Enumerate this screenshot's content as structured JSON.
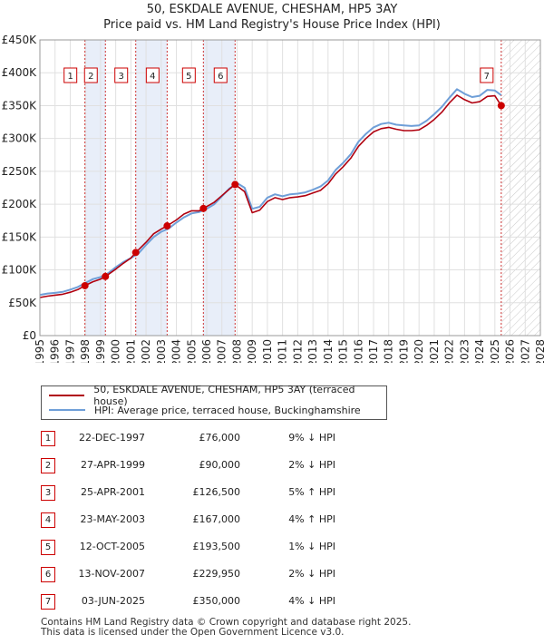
{
  "title_line1": "50, ESKDALE AVENUE, CHESHAM, HP5 3AY",
  "title_line2": "Price paid vs. HM Land Registry's House Price Index (HPI)",
  "chart_data": {
    "type": "line",
    "title": "50, ESKDALE AVENUE, CHESHAM, HP5 3AY — Price paid vs. HM Land Registry's House Price Index (HPI)",
    "xlim": [
      1995,
      2028
    ],
    "ylim": [
      0,
      450000
    ],
    "x_ticks": [
      "1995",
      "1996",
      "1997",
      "1998",
      "1999",
      "2000",
      "2001",
      "2002",
      "2003",
      "2004",
      "2005",
      "2006",
      "2007",
      "2008",
      "2009",
      "2010",
      "2011",
      "2012",
      "2013",
      "2014",
      "2015",
      "2016",
      "2017",
      "2018",
      "2019",
      "2020",
      "2021",
      "2022",
      "2023",
      "2024",
      "2025",
      "2026",
      "2027",
      "2028"
    ],
    "y_ticks": [
      {
        "value": 0,
        "label": "£0"
      },
      {
        "value": 50000,
        "label": "£50K"
      },
      {
        "value": 100000,
        "label": "£100K"
      },
      {
        "value": 150000,
        "label": "£150K"
      },
      {
        "value": 200000,
        "label": "£200K"
      },
      {
        "value": 250000,
        "label": "£250K"
      },
      {
        "value": 300000,
        "label": "£300K"
      },
      {
        "value": 350000,
        "label": "£350K"
      },
      {
        "value": 400000,
        "label": "£400K"
      },
      {
        "value": 450000,
        "label": "£450K"
      }
    ],
    "forecast_start": 2025.42,
    "series": [
      {
        "name": "HPI: Average price, terraced house, Buckinghamshire",
        "color": "#6f9fd8",
        "points": [
          [
            1995.0,
            62000
          ],
          [
            1995.5,
            64000
          ],
          [
            1996.0,
            65000
          ],
          [
            1996.5,
            66500
          ],
          [
            1997.0,
            70000
          ],
          [
            1997.5,
            74000
          ],
          [
            1998.0,
            80000
          ],
          [
            1998.5,
            86000
          ],
          [
            1999.0,
            89000
          ],
          [
            1999.5,
            95000
          ],
          [
            2000.0,
            104000
          ],
          [
            2000.5,
            112000
          ],
          [
            2001.0,
            118000
          ],
          [
            2001.5,
            125000
          ],
          [
            2002.0,
            138000
          ],
          [
            2002.5,
            150000
          ],
          [
            2003.0,
            158000
          ],
          [
            2003.5,
            163000
          ],
          [
            2004.0,
            172000
          ],
          [
            2004.5,
            180000
          ],
          [
            2005.0,
            186000
          ],
          [
            2005.5,
            188000
          ],
          [
            2006.0,
            193000
          ],
          [
            2006.5,
            200000
          ],
          [
            2007.0,
            212000
          ],
          [
            2007.5,
            224000
          ],
          [
            2008.0,
            232000
          ],
          [
            2008.5,
            225000
          ],
          [
            2009.0,
            193000
          ],
          [
            2009.5,
            196000
          ],
          [
            2010.0,
            210000
          ],
          [
            2010.5,
            215000
          ],
          [
            2011.0,
            212000
          ],
          [
            2011.5,
            215000
          ],
          [
            2012.0,
            216000
          ],
          [
            2012.5,
            218000
          ],
          [
            2013.0,
            222000
          ],
          [
            2013.5,
            227000
          ],
          [
            2014.0,
            236000
          ],
          [
            2014.5,
            252000
          ],
          [
            2015.0,
            263000
          ],
          [
            2015.5,
            276000
          ],
          [
            2016.0,
            295000
          ],
          [
            2016.5,
            307000
          ],
          [
            2017.0,
            317000
          ],
          [
            2017.5,
            322000
          ],
          [
            2018.0,
            324000
          ],
          [
            2018.5,
            321000
          ],
          [
            2019.0,
            320000
          ],
          [
            2019.5,
            319000
          ],
          [
            2020.0,
            320000
          ],
          [
            2020.5,
            327000
          ],
          [
            2021.0,
            337000
          ],
          [
            2021.5,
            348000
          ],
          [
            2022.0,
            362000
          ],
          [
            2022.5,
            375000
          ],
          [
            2023.0,
            368000
          ],
          [
            2023.5,
            363000
          ],
          [
            2024.0,
            365000
          ],
          [
            2024.5,
            374000
          ],
          [
            2025.0,
            373000
          ],
          [
            2025.42,
            366000
          ]
        ]
      },
      {
        "name": "50, ESKDALE AVENUE, CHESHAM, HP5 3AY (terraced house)",
        "color": "#b0000f",
        "points": [
          [
            1995.0,
            58000
          ],
          [
            1995.5,
            60000
          ],
          [
            1996.0,
            61500
          ],
          [
            1996.5,
            63000
          ],
          [
            1997.0,
            66000
          ],
          [
            1997.5,
            70000
          ],
          [
            1997.97,
            76000
          ],
          [
            1998.5,
            82000
          ],
          [
            1999.0,
            86000
          ],
          [
            1999.32,
            90000
          ],
          [
            2000.0,
            101000
          ],
          [
            2000.5,
            110000
          ],
          [
            2001.0,
            118000
          ],
          [
            2001.32,
            126500
          ],
          [
            2002.0,
            142000
          ],
          [
            2002.5,
            155000
          ],
          [
            2003.0,
            162000
          ],
          [
            2003.39,
            167000
          ],
          [
            2004.0,
            176000
          ],
          [
            2004.5,
            185000
          ],
          [
            2005.0,
            190000
          ],
          [
            2005.5,
            190000
          ],
          [
            2005.78,
            193500
          ],
          [
            2006.5,
            203000
          ],
          [
            2007.0,
            213000
          ],
          [
            2007.5,
            223000
          ],
          [
            2007.87,
            229950
          ],
          [
            2008.5,
            219000
          ],
          [
            2009.0,
            187000
          ],
          [
            2009.5,
            191000
          ],
          [
            2010.0,
            204000
          ],
          [
            2010.5,
            210000
          ],
          [
            2011.0,
            207000
          ],
          [
            2011.5,
            210000
          ],
          [
            2012.0,
            211000
          ],
          [
            2012.5,
            213000
          ],
          [
            2013.0,
            217000
          ],
          [
            2013.5,
            221000
          ],
          [
            2014.0,
            231000
          ],
          [
            2014.5,
            246000
          ],
          [
            2015.0,
            257000
          ],
          [
            2015.5,
            270000
          ],
          [
            2016.0,
            288000
          ],
          [
            2016.5,
            300000
          ],
          [
            2017.0,
            310000
          ],
          [
            2017.5,
            315000
          ],
          [
            2018.0,
            317000
          ],
          [
            2018.5,
            314000
          ],
          [
            2019.0,
            312000
          ],
          [
            2019.5,
            312000
          ],
          [
            2020.0,
            313000
          ],
          [
            2020.5,
            320000
          ],
          [
            2021.0,
            329000
          ],
          [
            2021.5,
            340000
          ],
          [
            2022.0,
            354000
          ],
          [
            2022.5,
            366000
          ],
          [
            2023.0,
            359000
          ],
          [
            2023.5,
            354000
          ],
          [
            2024.0,
            356000
          ],
          [
            2024.5,
            364000
          ],
          [
            2025.0,
            365000
          ],
          [
            2025.42,
            350000
          ]
        ]
      }
    ],
    "sales": [
      {
        "n": "1",
        "x": 1997.97,
        "price": 76000
      },
      {
        "n": "2",
        "x": 1999.32,
        "price": 90000
      },
      {
        "n": "3",
        "x": 2001.32,
        "price": 126500
      },
      {
        "n": "4",
        "x": 2003.39,
        "price": 167000
      },
      {
        "n": "5",
        "x": 2005.78,
        "price": 193500
      },
      {
        "n": "6",
        "x": 2007.87,
        "price": 229950
      },
      {
        "n": "7",
        "x": 2025.42,
        "price": 350000
      }
    ],
    "shaded_spans": [
      [
        1997.97,
        1999.32
      ],
      [
        2001.32,
        2003.39
      ],
      [
        2005.78,
        2007.87
      ]
    ]
  },
  "legend": {
    "property_label": "50, ESKDALE AVENUE, CHESHAM, HP5 3AY (terraced house)",
    "hpi_label": "HPI: Average price, terraced house, Buckinghamshire",
    "property_color": "#b0000f",
    "hpi_color": "#6f9fd8"
  },
  "transactions": [
    {
      "n": "1",
      "date": "22-DEC-1997",
      "price": "£76,000",
      "hpi": "9% ↓ HPI"
    },
    {
      "n": "2",
      "date": "27-APR-1999",
      "price": "£90,000",
      "hpi": "2% ↓ HPI"
    },
    {
      "n": "3",
      "date": "25-APR-2001",
      "price": "£126,500",
      "hpi": "5% ↑ HPI"
    },
    {
      "n": "4",
      "date": "23-MAY-2003",
      "price": "£167,000",
      "hpi": "4% ↑ HPI"
    },
    {
      "n": "5",
      "date": "12-OCT-2005",
      "price": "£193,500",
      "hpi": "1% ↓ HPI"
    },
    {
      "n": "6",
      "date": "13-NOV-2007",
      "price": "£229,950",
      "hpi": "2% ↓ HPI"
    },
    {
      "n": "7",
      "date": "03-JUN-2025",
      "price": "£350,000",
      "hpi": "4% ↓ HPI"
    }
  ],
  "footer_line1": "Contains HM Land Registry data © Crown copyright and database right 2025.",
  "footer_line2": "This data is licensed under the Open Government Licence v3.0."
}
